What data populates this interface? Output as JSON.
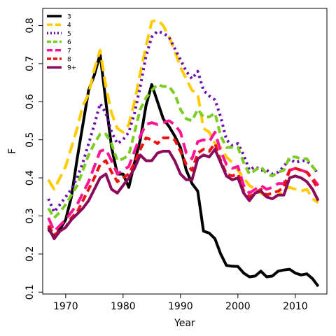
{
  "chart_data": {
    "type": "line",
    "title": "",
    "xlabel": "Year",
    "ylabel": "F",
    "xlim": [
      1966,
      2015.5
    ],
    "ylim": [
      0.095,
      0.845
    ],
    "xticks": [
      1970,
      1980,
      1990,
      2000,
      2010
    ],
    "yticks": [
      0.1,
      0.2,
      0.3,
      0.4,
      0.5,
      0.6,
      0.7,
      0.8
    ],
    "grid": false,
    "legend_position": "top-left",
    "x": [
      1967,
      1968,
      1969,
      1970,
      1971,
      1972,
      1973,
      1974,
      1975,
      1976,
      1977,
      1978,
      1979,
      1980,
      1981,
      1982,
      1983,
      1984,
      1985,
      1986,
      1987,
      1988,
      1989,
      1990,
      1991,
      1992,
      1993,
      1994,
      1995,
      1996,
      1997,
      1998,
      1999,
      2000,
      2001,
      2002,
      2003,
      2004,
      2005,
      2006,
      2007,
      2008,
      2009,
      2010,
      2011,
      2012,
      2013,
      2014
    ],
    "series": [
      {
        "name": "3",
        "color": "#000000",
        "dash": "solid",
        "values": [
          0.265,
          0.245,
          0.265,
          0.29,
          0.35,
          0.45,
          0.54,
          0.63,
          0.67,
          0.725,
          0.6,
          0.48,
          0.41,
          0.41,
          0.375,
          0.44,
          0.5,
          0.59,
          0.645,
          0.6,
          0.555,
          0.535,
          0.51,
          0.48,
          0.42,
          0.385,
          0.365,
          0.26,
          0.255,
          0.24,
          0.2,
          0.17,
          0.168,
          0.167,
          0.15,
          0.14,
          0.142,
          0.155,
          0.14,
          0.142,
          0.155,
          0.158,
          0.16,
          0.15,
          0.145,
          0.148,
          0.135,
          0.115
        ]
      },
      {
        "name": "4",
        "color": "#ffcc00",
        "dash": "long",
        "values": [
          0.395,
          0.37,
          0.4,
          0.43,
          0.48,
          0.53,
          0.59,
          0.62,
          0.685,
          0.735,
          0.64,
          0.57,
          0.53,
          0.52,
          0.54,
          0.6,
          0.675,
          0.745,
          0.81,
          0.815,
          0.8,
          0.77,
          0.735,
          0.69,
          0.66,
          0.63,
          0.62,
          0.53,
          0.52,
          0.49,
          0.48,
          0.455,
          0.44,
          0.42,
          0.4,
          0.38,
          0.37,
          0.36,
          0.35,
          0.345,
          0.355,
          0.37,
          0.375,
          0.37,
          0.365,
          0.37,
          0.345,
          0.335
        ]
      },
      {
        "name": "5",
        "color": "#6a0dad",
        "dash": "dotted",
        "values": [
          0.345,
          0.31,
          0.33,
          0.35,
          0.37,
          0.4,
          0.44,
          0.49,
          0.54,
          0.595,
          0.57,
          0.52,
          0.49,
          0.5,
          0.52,
          0.57,
          0.64,
          0.72,
          0.77,
          0.785,
          0.78,
          0.77,
          0.74,
          0.71,
          0.68,
          0.66,
          0.68,
          0.63,
          0.615,
          0.605,
          0.56,
          0.5,
          0.485,
          0.49,
          0.46,
          0.42,
          0.43,
          0.42,
          0.42,
          0.41,
          0.415,
          0.43,
          0.45,
          0.44,
          0.445,
          0.445,
          0.43,
          0.41
        ]
      },
      {
        "name": "6",
        "color": "#7ccd22",
        "dash": "dashed",
        "values": [
          0.32,
          0.295,
          0.31,
          0.33,
          0.355,
          0.38,
          0.42,
          0.46,
          0.49,
          0.515,
          0.515,
          0.49,
          0.445,
          0.45,
          0.46,
          0.52,
          0.58,
          0.61,
          0.63,
          0.645,
          0.64,
          0.64,
          0.62,
          0.58,
          0.555,
          0.55,
          0.58,
          0.56,
          0.56,
          0.57,
          0.51,
          0.48,
          0.48,
          0.48,
          0.44,
          0.41,
          0.42,
          0.43,
          0.41,
          0.405,
          0.415,
          0.42,
          0.455,
          0.455,
          0.45,
          0.45,
          0.43,
          0.41
        ]
      },
      {
        "name": "7",
        "color": "#ff1493",
        "dash": "long",
        "values": [
          0.295,
          0.26,
          0.275,
          0.29,
          0.31,
          0.33,
          0.36,
          0.39,
          0.43,
          0.47,
          0.475,
          0.445,
          0.41,
          0.42,
          0.43,
          0.47,
          0.51,
          0.54,
          0.545,
          0.54,
          0.545,
          0.55,
          0.54,
          0.52,
          0.465,
          0.45,
          0.495,
          0.5,
          0.495,
          0.52,
          0.47,
          0.435,
          0.425,
          0.43,
          0.38,
          0.36,
          0.37,
          0.38,
          0.37,
          0.375,
          0.385,
          0.385,
          0.42,
          0.425,
          0.42,
          0.415,
          0.4,
          0.38
        ]
      },
      {
        "name": "8",
        "color": "#ee1111",
        "dash": "dashed",
        "values": [
          0.275,
          0.25,
          0.26,
          0.27,
          0.295,
          0.31,
          0.34,
          0.37,
          0.4,
          0.435,
          0.445,
          0.415,
          0.39,
          0.4,
          0.41,
          0.44,
          0.475,
          0.505,
          0.5,
          0.49,
          0.505,
          0.505,
          0.5,
          0.47,
          0.435,
          0.42,
          0.465,
          0.475,
          0.47,
          0.49,
          0.445,
          0.41,
          0.405,
          0.41,
          0.365,
          0.35,
          0.36,
          0.37,
          0.355,
          0.36,
          0.365,
          0.375,
          0.42,
          0.425,
          0.42,
          0.415,
          0.395,
          0.37
        ]
      },
      {
        "name": "9+",
        "color": "#8b0a5a",
        "dash": "solid",
        "values": [
          0.27,
          0.24,
          0.26,
          0.27,
          0.29,
          0.305,
          0.32,
          0.34,
          0.37,
          0.4,
          0.41,
          0.37,
          0.36,
          0.38,
          0.4,
          0.425,
          0.46,
          0.445,
          0.445,
          0.465,
          0.47,
          0.47,
          0.445,
          0.41,
          0.395,
          0.395,
          0.45,
          0.46,
          0.455,
          0.475,
          0.44,
          0.405,
          0.395,
          0.4,
          0.36,
          0.34,
          0.36,
          0.365,
          0.35,
          0.345,
          0.355,
          0.355,
          0.4,
          0.405,
          0.4,
          0.39,
          0.37,
          0.34
        ]
      }
    ]
  }
}
